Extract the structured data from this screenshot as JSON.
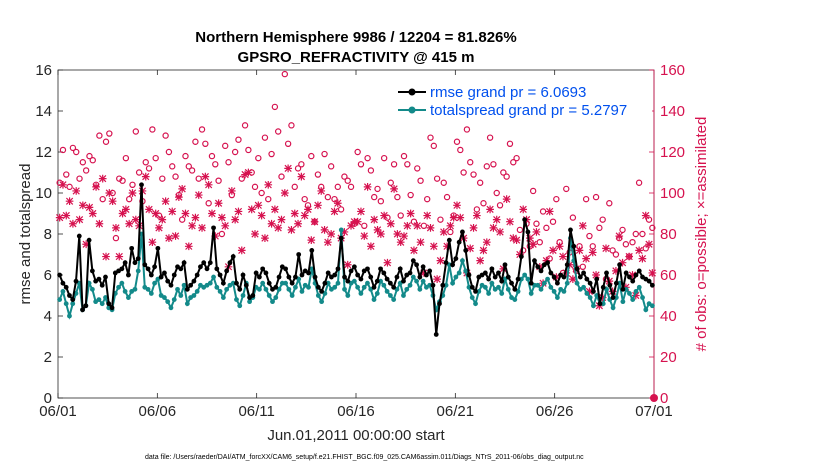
{
  "chart_data": {
    "type": "line",
    "title": "Northern Hemisphere 9986 / 12204 = 81.826%",
    "subtitle": "GPSRO_REFRACTIVITY @ 415 m",
    "xlabel": "Jun.01,2011 00:00:00 start",
    "ylabel": "rmse and totalspread",
    "y2label": "# of obs: o=possible; ×=assimilated",
    "footnote": "data file: /Users/raeder/DAI/ATM_forcXX/CAM6_setup/f.e21.FHIST_BGC.f09_025.CAM6assim.011/Diags_NTrS_2011-06/obs_diag_output.nc",
    "xlim": [
      0,
      30
    ],
    "xticks": [
      0,
      5,
      10,
      15,
      20,
      25,
      30
    ],
    "xtick_labels": [
      "06/01",
      "06/06",
      "06/11",
      "06/16",
      "06/21",
      "06/26",
      "07/01"
    ],
    "ylim": [
      0,
      16
    ],
    "yticks": [
      0,
      2,
      4,
      6,
      8,
      10,
      12,
      14,
      16
    ],
    "y2lim": [
      0,
      160
    ],
    "y2ticks": [
      0,
      20,
      40,
      60,
      80,
      100,
      120,
      140,
      160
    ],
    "legend": [
      {
        "name": "rmse grand pr = 6.0693",
        "color": "#000000"
      },
      {
        "name": "totalspread grand pr = 5.2797",
        "color": "#138a8a"
      }
    ],
    "series": [
      {
        "name": "rmse",
        "axis": "left",
        "color": "#000000",
        "values": [
          6.0,
          5.6,
          5.4,
          5.0,
          4.8,
          5.7,
          7.9,
          4.3,
          4.5,
          7.7,
          6.2,
          5.7,
          5.8,
          5.5,
          5.9,
          4.6,
          4.4,
          6.1,
          6.2,
          6.3,
          6.6,
          6.0,
          7.3,
          6.6,
          6.8,
          10.4,
          6.5,
          6.3,
          6.0,
          6.4,
          7.3,
          5.9,
          6.1,
          5.7,
          5.5,
          6.0,
          6.4,
          6.3,
          6.6,
          5.3,
          5.5,
          5.7,
          6.0,
          6.4,
          6.6,
          6.3,
          6.6,
          8.3,
          6.3,
          6.0,
          5.6,
          6.2,
          6.6,
          6.9,
          5.6,
          5.3,
          6.0,
          5.5,
          4.9,
          5.0,
          6.1,
          5.9,
          6.3,
          6.1,
          5.6,
          5.3,
          5.4,
          5.9,
          6.4,
          6.3,
          5.9,
          5.6,
          5.9,
          7.0,
          6.0,
          6.2,
          6.1,
          7.2,
          5.9,
          5.4,
          5.2,
          5.6,
          6.1,
          5.9,
          6.0,
          6.3,
          7.8,
          5.9,
          5.7,
          6.2,
          6.4,
          6.0,
          5.8,
          6.2,
          6.3,
          5.9,
          5.4,
          5.7,
          6.3,
          6.1,
          5.8,
          5.6,
          5.4,
          5.9,
          6.3,
          5.7,
          6.0,
          6.1,
          6.7,
          6.5,
          5.9,
          6.4,
          6.0,
          6.2,
          5.5,
          3.1,
          4.6,
          5.5,
          6.6,
          7.7,
          6.5,
          6.8,
          7.6,
          8.1,
          7.2,
          6.0,
          5.4,
          5.2,
          5.9,
          6.0,
          6.1,
          5.8,
          6.3,
          5.9,
          6.1,
          5.7,
          6.5,
          5.9,
          5.6,
          5.3,
          5.8,
          6.9,
          8.7,
          8.1,
          5.6,
          6.7,
          6.4,
          6.2,
          6.5,
          6.6,
          6.1,
          5.9,
          5.6,
          6.0,
          5.9,
          6.5,
          8.2,
          7.4,
          6.3,
          5.9,
          6.1,
          5.8,
          5.6,
          5.2,
          5.8,
          4.6,
          5.4,
          6.1,
          5.5,
          4.9,
          5.6,
          6.5,
          5.3,
          6.1,
          5.9,
          5.7,
          6.0,
          6.2,
          5.9,
          5.8,
          5.7,
          5.5
        ]
      },
      {
        "name": "totalspread",
        "axis": "left",
        "color": "#138a8a",
        "values": [
          4.8,
          5.2,
          4.6,
          4.0,
          4.6,
          5.1,
          5.6,
          4.3,
          4.5,
          5.6,
          5.3,
          4.7,
          4.8,
          4.6,
          4.9,
          4.4,
          4.3,
          5.1,
          5.4,
          5.6,
          5.2,
          4.9,
          5.2,
          5.3,
          6.2,
          8.0,
          5.4,
          5.3,
          5.1,
          5.6,
          5.8,
          5.0,
          4.9,
          4.7,
          4.4,
          4.8,
          5.3,
          5.0,
          5.5,
          4.6,
          4.9,
          5.0,
          5.2,
          5.5,
          5.4,
          5.5,
          5.6,
          5.9,
          5.4,
          5.2,
          4.9,
          5.3,
          5.5,
          5.6,
          4.8,
          4.5,
          5.0,
          5.6,
          4.7,
          4.9,
          5.4,
          5.3,
          5.6,
          5.3,
          5.0,
          4.7,
          4.9,
          5.3,
          5.6,
          5.6,
          5.3,
          5.0,
          5.4,
          5.8,
          5.2,
          5.5,
          5.4,
          6.3,
          5.6,
          5.0,
          4.7,
          5.1,
          5.6,
          5.3,
          5.4,
          5.6,
          8.2,
          5.3,
          5.0,
          5.6,
          5.7,
          5.4,
          5.1,
          5.4,
          5.6,
          5.3,
          4.8,
          5.1,
          5.7,
          5.5,
          5.2,
          5.0,
          4.8,
          5.3,
          5.6,
          5.0,
          5.3,
          5.5,
          5.9,
          5.7,
          5.3,
          5.7,
          5.4,
          5.5,
          5.0,
          4.3,
          4.7,
          5.0,
          5.5,
          6.5,
          5.6,
          5.9,
          6.1,
          6.7,
          6.2,
          5.4,
          4.9,
          4.6,
          5.2,
          5.5,
          5.4,
          5.1,
          5.6,
          5.3,
          5.4,
          5.1,
          5.8,
          5.3,
          4.9,
          4.8,
          5.2,
          5.8,
          6.0,
          5.8,
          5.1,
          5.5,
          5.5,
          5.3,
          5.6,
          5.8,
          5.4,
          5.2,
          4.9,
          5.3,
          5.2,
          5.6,
          7.8,
          6.7,
          5.6,
          5.3,
          5.4,
          5.1,
          4.9,
          4.5,
          5.0,
          4.6,
          4.6,
          5.3,
          4.8,
          4.4,
          4.9,
          5.6,
          4.7,
          5.3,
          5.1,
          4.8,
          5.2,
          5.4,
          4.9,
          4.3,
          4.6,
          4.5
        ]
      },
      {
        "name": "possible",
        "axis": "right",
        "color": "#d6124f",
        "marker": "circle",
        "values": [
          105,
          121,
          109,
          103,
          122,
          120,
          107,
          115,
          111,
          118,
          116,
          104,
          128,
          97,
          125,
          129,
          100,
          78,
          107,
          106,
          117,
          97,
          104,
          130,
          110,
          96,
          115,
          112,
          131,
          117,
          89,
          107,
          128,
          120,
          113,
          108,
          99,
          87,
          118,
          113,
          111,
          125,
          107,
          131,
          124,
          95,
          118,
          114,
          106,
          80,
          123,
          115,
          99,
          120,
          126,
          107,
          133,
          121,
          110,
          103,
          117,
          100,
          127,
          97,
          119,
          142,
          130,
          108,
          158,
          124,
          133,
          103,
          112,
          114,
          97,
          94,
          118,
          86,
          109,
          103,
          119,
          98,
          113,
          97,
          103,
          92,
          108,
          106,
          103,
          85,
          120,
          114,
          84,
          117,
          111,
          98,
          102,
          96,
          117,
          88,
          105,
          114,
          98,
          89,
          118,
          114,
          99,
          86,
          112,
          106,
          84,
          97,
          127,
          123,
          107,
          87,
          105,
          98,
          81,
          89,
          125,
          121,
          110,
          131,
          115,
          109,
          92,
          105,
          95,
          113,
          127,
          114,
          100,
          94,
          110,
          108,
          124,
          115,
          117,
          82,
          72,
          85,
          74,
          101,
          85,
          76,
          91,
          83,
          68,
          86,
          97,
          76,
          61,
          102,
          71,
          88,
          62,
          74,
          64,
          97,
          79,
          74,
          98,
          83,
          87,
          58,
          95,
          72,
          70,
          78,
          82,
          75,
          69,
          76,
          80,
          105,
          80,
          73,
          87,
          83
        ]
      },
      {
        "name": "assimilated",
        "axis": "right",
        "color": "#d6124f",
        "marker": "x",
        "values": [
          88,
          104,
          89,
          96,
          85,
          101,
          87,
          94,
          75,
          93,
          90,
          103,
          85,
          107,
          69,
          100,
          96,
          83,
          69,
          90,
          92,
          85,
          100,
          87,
          84,
          101,
          108,
          92,
          76,
          90,
          83,
          87,
          96,
          78,
          91,
          79,
          98,
          102,
          90,
          74,
          84,
          88,
          99,
          83,
          108,
          104,
          90,
          79,
          95,
          88,
          84,
          64,
          101,
          87,
          91,
          72,
          109,
          110,
          92,
          80,
          94,
          89,
          78,
          104,
          85,
          92,
          83,
          87,
          100,
          112,
          82,
          90,
          85,
          108,
          89,
          92,
          77,
          86,
          94,
          101,
          82,
          76,
          80,
          91,
          95,
          78,
          81,
          65,
          84,
          86,
          86,
          91,
          79,
          103,
          74,
          87,
          82,
          80,
          89,
          66,
          85,
          102,
          80,
          76,
          79,
          84,
          90,
          72,
          84,
          76,
          61,
          89,
          83,
          74,
          58,
          67,
          81,
          74,
          84,
          88,
          94,
          88,
          78,
          61,
          73,
          83,
          89,
          67,
          72,
          76,
          92,
          83,
          87,
          81,
          63,
          97,
          86,
          78,
          77,
          70,
          92,
          87,
          78,
          75,
          81,
          64,
          56,
          67,
          91,
          72,
          59,
          74,
          69,
          61,
          65,
          58,
          63,
          72,
          84,
          68,
          52,
          71,
          60,
          45,
          49,
          73,
          57,
          52,
          62,
          79,
          66,
          54,
          69,
          60,
          50,
          72,
          68,
          89,
          75,
          61
        ]
      }
    ]
  }
}
